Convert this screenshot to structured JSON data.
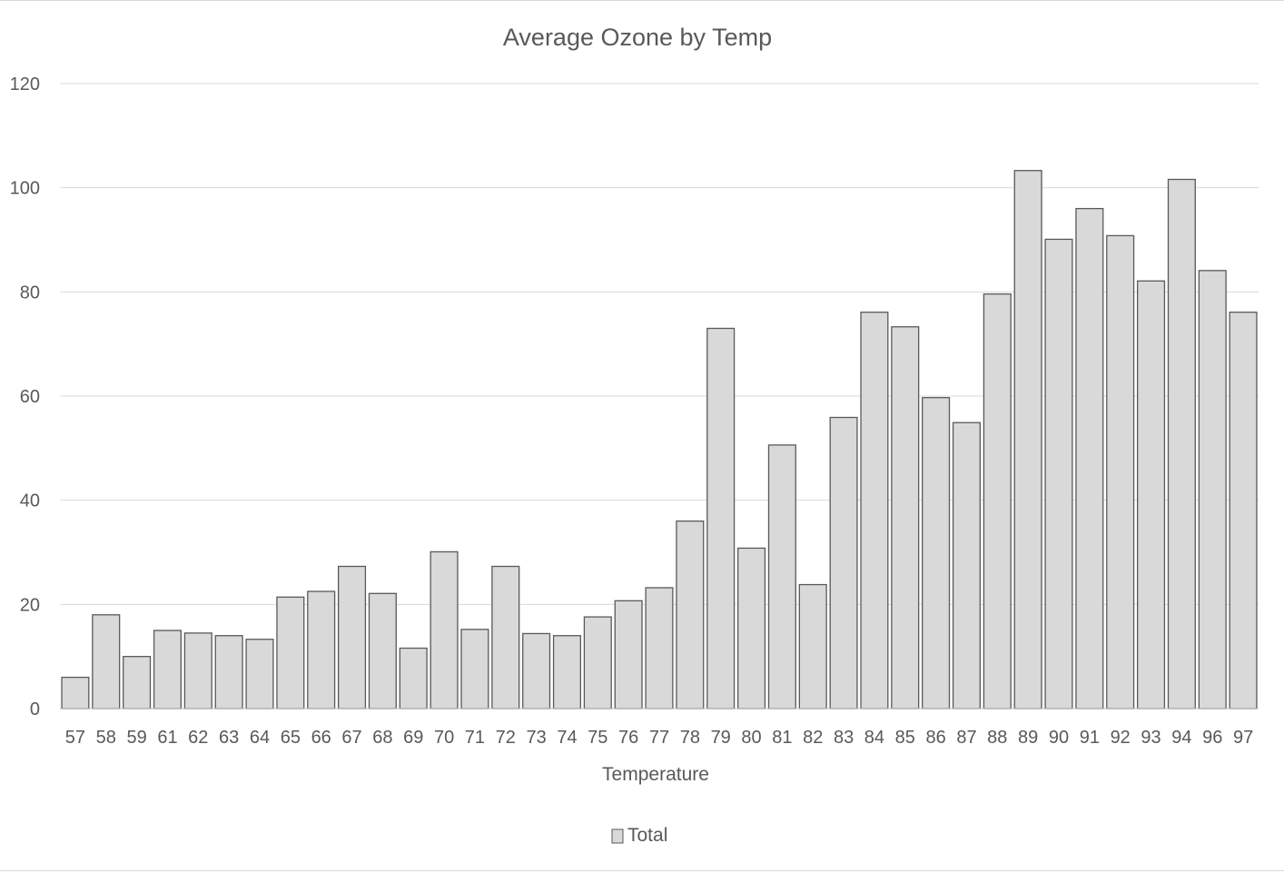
{
  "chart_data": {
    "type": "bar",
    "title": "Average Ozone by Temp",
    "xlabel": "Temperature",
    "ylabel": "",
    "ylim": [
      0,
      120
    ],
    "yticks": [
      0,
      20,
      40,
      60,
      80,
      100,
      120
    ],
    "grid": true,
    "legend": {
      "position": "bottom",
      "entries": [
        "Total"
      ]
    },
    "categories": [
      "57",
      "58",
      "59",
      "61",
      "62",
      "63",
      "64",
      "65",
      "66",
      "67",
      "68",
      "69",
      "70",
      "71",
      "72",
      "73",
      "74",
      "75",
      "76",
      "77",
      "78",
      "79",
      "80",
      "81",
      "82",
      "83",
      "84",
      "85",
      "86",
      "87",
      "88",
      "89",
      "90",
      "91",
      "92",
      "93",
      "94",
      "96",
      "97"
    ],
    "series": [
      {
        "name": "Total",
        "color": "#d9d9d9",
        "stroke": "#595959",
        "values": [
          6,
          18,
          10,
          15,
          14.5,
          14,
          13.3,
          21.4,
          22.5,
          27.3,
          22.1,
          11.6,
          30.1,
          15.2,
          27.3,
          14.4,
          14,
          17.6,
          20.7,
          23.2,
          36,
          73,
          30.8,
          50.6,
          23.8,
          55.9,
          76.1,
          73.3,
          59.7,
          54.9,
          79.6,
          103.3,
          90.1,
          96,
          90.8,
          82.1,
          101.6,
          84.1,
          76.1
        ]
      }
    ]
  }
}
